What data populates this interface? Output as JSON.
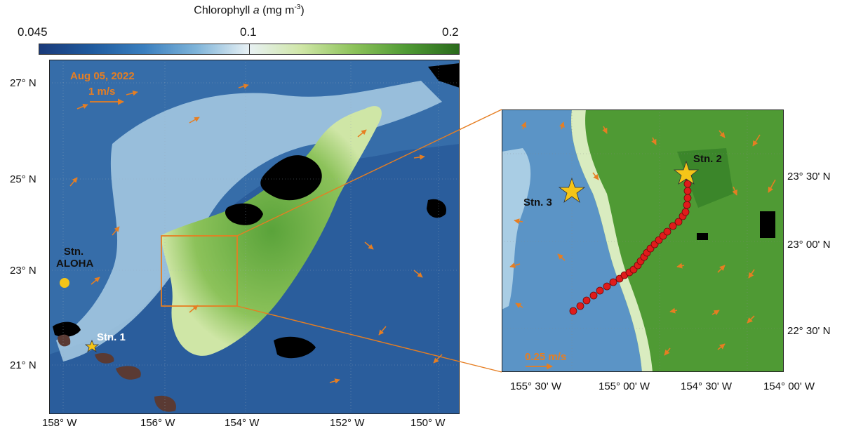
{
  "colorbar": {
    "title_prefix": "Chlorophyll ",
    "title_var": "a",
    "title_unit": " (mg m",
    "title_exp": "-3",
    "title_close": ")",
    "tick_min": "0.045",
    "tick_mid": "0.1",
    "tick_max": "0.2",
    "colors": [
      "#1a3a7a",
      "#1f5a9e",
      "#3a7fbf",
      "#7fb4d9",
      "#e8f1f4",
      "#cfe6a6",
      "#8cc25a",
      "#4f9a34",
      "#2a6a1c"
    ]
  },
  "main_map": {
    "date_label": "Aug 05, 2022",
    "speed_label": "1 m/s",
    "lat_labels": [
      "27° N",
      "25° N",
      "23° N",
      "21° N"
    ],
    "lon_labels": [
      "158° W",
      "156° W",
      "154° W",
      "152° W",
      "150° W"
    ],
    "stations": {
      "aloha_line1": "Stn.",
      "aloha_line2": "ALOHA",
      "stn1": "Stn. 1"
    }
  },
  "inset_map": {
    "speed_label": "0.25 m/s",
    "lat_labels": [
      "23° 30' N",
      "23° 00' N",
      "22° 30' N"
    ],
    "lon_labels": [
      "155° 30' W",
      "155° 00' W",
      "154° 30' W",
      "154° 00' W"
    ],
    "stations": {
      "stn2": "Stn. 2",
      "stn3": "Stn. 3"
    }
  },
  "accent_colors": {
    "current_arrows": "#e67e22",
    "track_points": "#e01b1b",
    "star": "#f5c518",
    "aloha_dot": "#f5c518",
    "land": "#5a3a33"
  }
}
